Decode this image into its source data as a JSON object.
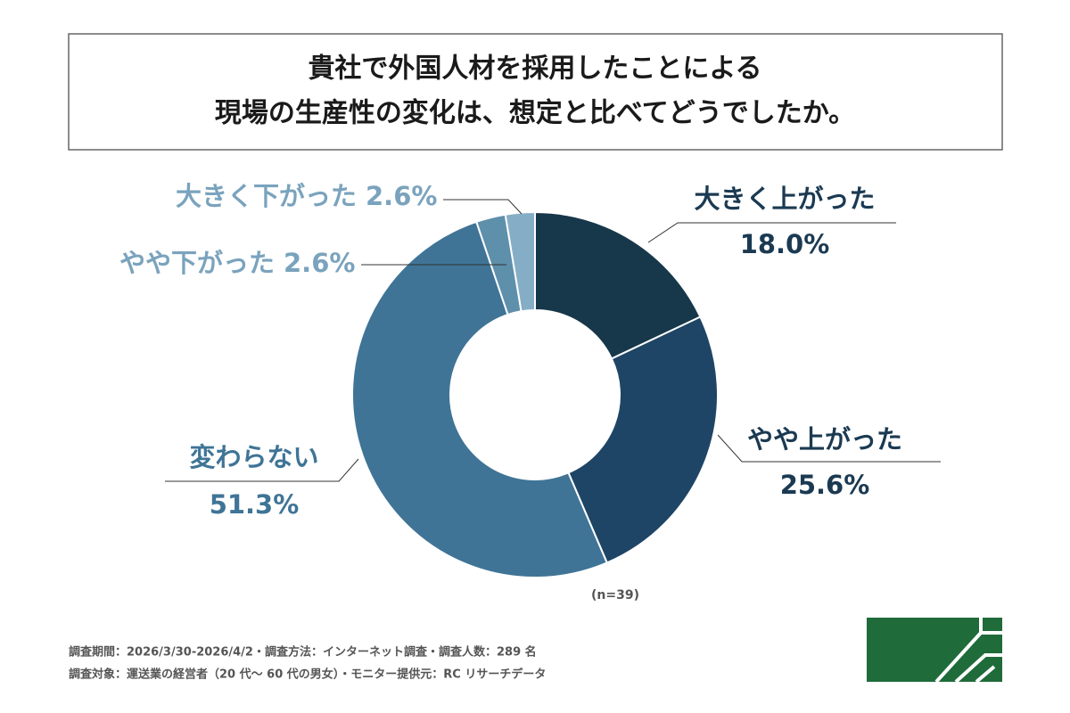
{
  "chart_data": {
    "type": "donut",
    "title": [
      "貴社で外国人材を採用したことによる",
      "現場の生産性の変化は、想定と比べてどうでしたか。"
    ],
    "categories": [
      "大きく上がった",
      "やや上がった",
      "変わらない",
      "やや下がった",
      "大きく下がった"
    ],
    "values": [
      18.0,
      25.6,
      51.3,
      2.6,
      2.6
    ],
    "value_labels": [
      "18.0%",
      "25.6%",
      "51.3%",
      "2.6%",
      "2.6%"
    ],
    "colors": [
      "#17374a",
      "#1e4565",
      "#3f7496",
      "#5e8fab",
      "#85aec6"
    ],
    "sample_note": "(n=39)"
  },
  "footer": [
    "調査期間：2026/3/30-2026/4/2・調査方法：インターネット調査・調査人数：289 名",
    "調査対象：運送業の経営者（20 代〜 60 代の男女）・モニター提供元：RC リサーチデータ"
  ]
}
